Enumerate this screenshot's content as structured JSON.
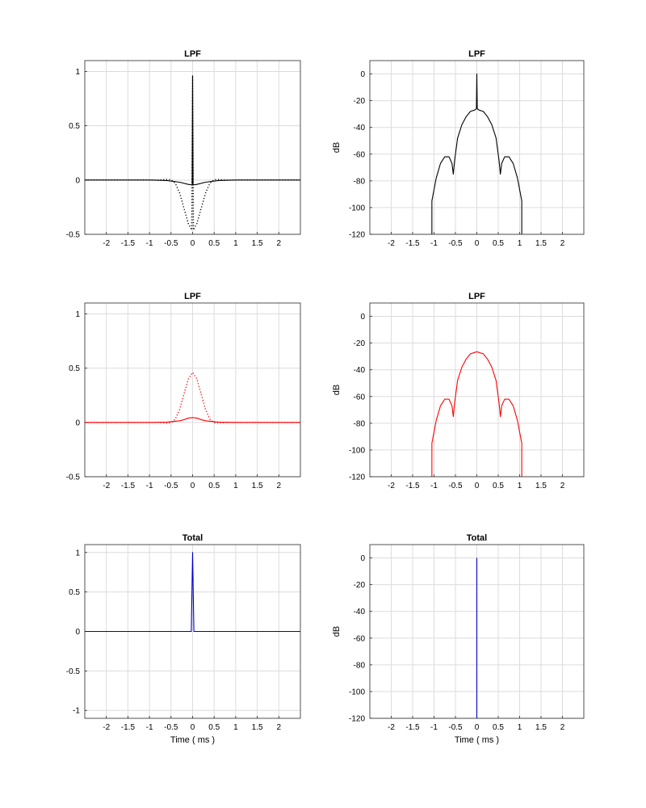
{
  "chart_data": [
    {
      "type": "line",
      "title": "LPF",
      "xlabel": "",
      "ylabel": "",
      "xlim": [
        -2.5,
        2.5
      ],
      "ylim": [
        -0.5,
        1.1
      ],
      "xticks": [
        "-2",
        "-1.5",
        "-1",
        "-0.5",
        "0",
        "0.5",
        "1",
        "1.5",
        "2"
      ],
      "yticks": [
        "-0.5",
        "0",
        "0.5",
        "1"
      ],
      "grid": true,
      "series": [
        {
          "style": "solid",
          "color": "#000000",
          "x": [
            -2.5,
            -1.0,
            -0.6,
            -0.3,
            -0.1,
            -0.01,
            0.0,
            0.01,
            0.1,
            0.3,
            0.6,
            1.0,
            2.5
          ],
          "y": [
            0,
            0,
            -0.005,
            -0.02,
            -0.04,
            -0.045,
            0.96,
            -0.045,
            -0.04,
            -0.02,
            -0.005,
            0,
            0
          ]
        },
        {
          "style": "dotted",
          "color": "#000000",
          "x": [
            -2.5,
            -0.8,
            -0.6,
            -0.5,
            -0.4,
            -0.3,
            -0.2,
            -0.1,
            -0.02,
            0.0,
            0.02,
            0.1,
            0.2,
            0.3,
            0.4,
            0.5,
            0.6,
            0.8,
            2.5
          ],
          "y": [
            0,
            0,
            0.005,
            0.003,
            -0.03,
            -0.12,
            -0.26,
            -0.4,
            -0.46,
            0.96,
            -0.46,
            -0.4,
            -0.26,
            -0.12,
            -0.03,
            0.003,
            0.005,
            0,
            0
          ]
        }
      ]
    },
    {
      "type": "line",
      "title": "LPF",
      "xlabel": "",
      "ylabel": "dB",
      "xlim": [
        -2.5,
        2.5
      ],
      "ylim": [
        -120,
        10
      ],
      "xticks": [
        "-2",
        "-1.5",
        "-1",
        "-0.5",
        "0",
        "0.5",
        "1",
        "1.5",
        "2"
      ],
      "yticks": [
        "-120",
        "-100",
        "-80",
        "-60",
        "-40",
        "-20",
        "0"
      ],
      "grid": true,
      "series": [
        {
          "style": "solid",
          "color": "#000000",
          "x": [
            -1.05,
            -1.05,
            -0.95,
            -0.85,
            -0.75,
            -0.65,
            -0.58,
            -0.55,
            -0.52,
            -0.45,
            -0.35,
            -0.25,
            -0.15,
            -0.05,
            -0.01,
            0.0,
            0.01,
            0.05,
            0.15,
            0.25,
            0.35,
            0.45,
            0.52,
            0.55,
            0.58,
            0.65,
            0.75,
            0.85,
            0.95,
            1.05,
            1.05
          ],
          "y": [
            -120,
            -95,
            -78,
            -67,
            -62,
            -62,
            -67,
            -75,
            -65,
            -48,
            -38,
            -32,
            -28,
            -27,
            -26,
            0,
            -26,
            -27,
            -28,
            -32,
            -38,
            -48,
            -65,
            -75,
            -67,
            -62,
            -62,
            -67,
            -78,
            -95,
            -120
          ]
        }
      ]
    },
    {
      "type": "line",
      "title": "LPF",
      "xlabel": "",
      "ylabel": "",
      "xlim": [
        -2.5,
        2.5
      ],
      "ylim": [
        -0.5,
        1.1
      ],
      "xticks": [
        "-2",
        "-1.5",
        "-1",
        "-0.5",
        "0",
        "0.5",
        "1",
        "1.5",
        "2"
      ],
      "yticks": [
        "-0.5",
        "0",
        "0.5",
        "1"
      ],
      "grid": true,
      "series": [
        {
          "style": "solid",
          "color": "#ff0000",
          "x": [
            -2.5,
            -1.0,
            -0.6,
            -0.3,
            -0.2,
            -0.1,
            0.0,
            0.1,
            0.2,
            0.3,
            0.6,
            1.0,
            2.5
          ],
          "y": [
            0,
            0,
            0.003,
            0.015,
            0.025,
            0.04,
            0.045,
            0.04,
            0.025,
            0.015,
            0.003,
            0,
            0
          ]
        },
        {
          "style": "dotted",
          "color": "#ff0000",
          "x": [
            -2.5,
            -0.8,
            -0.6,
            -0.5,
            -0.4,
            -0.3,
            -0.2,
            -0.1,
            0.0,
            0.1,
            0.2,
            0.3,
            0.4,
            0.5,
            0.6,
            0.8,
            2.5
          ],
          "y": [
            0,
            0,
            -0.005,
            -0.003,
            0.03,
            0.12,
            0.26,
            0.4,
            0.46,
            0.4,
            0.26,
            0.12,
            0.03,
            -0.003,
            -0.005,
            0,
            0
          ]
        }
      ]
    },
    {
      "type": "line",
      "title": "LPF",
      "xlabel": "",
      "ylabel": "dB",
      "xlim": [
        -2.5,
        2.5
      ],
      "ylim": [
        -120,
        10
      ],
      "xticks": [
        "-2",
        "-1.5",
        "-1",
        "-0.5",
        "0",
        "0.5",
        "1",
        "1.5",
        "2"
      ],
      "yticks": [
        "-120",
        "-100",
        "-80",
        "-60",
        "-40",
        "-20",
        "0"
      ],
      "grid": true,
      "series": [
        {
          "style": "solid",
          "color": "#ff0000",
          "x": [
            -1.05,
            -1.05,
            -0.95,
            -0.85,
            -0.75,
            -0.65,
            -0.58,
            -0.55,
            -0.52,
            -0.45,
            -0.35,
            -0.25,
            -0.15,
            -0.05,
            0.0,
            0.05,
            0.15,
            0.25,
            0.35,
            0.45,
            0.52,
            0.55,
            0.58,
            0.65,
            0.75,
            0.85,
            0.95,
            1.05,
            1.05
          ],
          "y": [
            -120,
            -95,
            -78,
            -67,
            -62,
            -62,
            -67,
            -75,
            -65,
            -48,
            -38,
            -32,
            -28,
            -27,
            -26.5,
            -27,
            -28,
            -32,
            -38,
            -48,
            -65,
            -75,
            -67,
            -62,
            -62,
            -67,
            -78,
            -95,
            -120
          ]
        }
      ]
    },
    {
      "type": "line",
      "title": "Total",
      "xlabel": "Time ( ms )",
      "ylabel": "",
      "xlim": [
        -2.5,
        2.5
      ],
      "ylim": [
        -1.1,
        1.1
      ],
      "xticks": [
        "-2",
        "-1.5",
        "-1",
        "-0.5",
        "0",
        "0.5",
        "1",
        "1.5",
        "2"
      ],
      "yticks": [
        "-1",
        "-0.5",
        "0",
        "0.5",
        "1"
      ],
      "grid": true,
      "series": [
        {
          "style": "solid",
          "color": "#0000cc",
          "x": [
            -2.5,
            -0.03,
            0.0,
            0.03,
            2.5
          ],
          "y": [
            0,
            0,
            1.0,
            0,
            0
          ]
        }
      ]
    },
    {
      "type": "line",
      "title": "Total",
      "xlabel": "Time ( ms )",
      "ylabel": "dB",
      "xlim": [
        -2.5,
        2.5
      ],
      "ylim": [
        -120,
        10
      ],
      "xticks": [
        "-2",
        "-1.5",
        "-1",
        "-0.5",
        "0",
        "0.5",
        "1",
        "1.5",
        "2"
      ],
      "yticks": [
        "-120",
        "-100",
        "-80",
        "-60",
        "-40",
        "-20",
        "0"
      ],
      "grid": true,
      "series": [
        {
          "style": "solid",
          "color": "#0000cc",
          "x": [
            0.0,
            0.0
          ],
          "y": [
            -120,
            0
          ]
        }
      ]
    }
  ]
}
